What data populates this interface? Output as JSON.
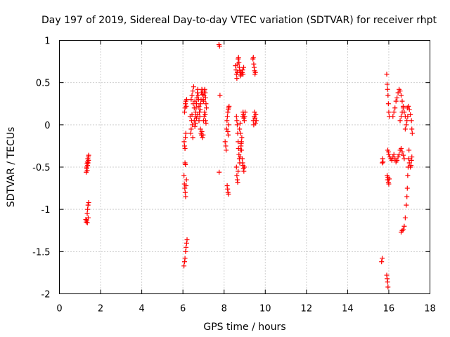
{
  "chart_data": {
    "type": "scatter",
    "title": "Day 197 of 2019, Sidereal Day-to-day VTEC variation (SDTVAR) for receiver rhpt",
    "xlabel": "GPS time / hours",
    "ylabel": "SDTVAR / TECUs",
    "xlim": [
      0,
      18
    ],
    "ylim": [
      -2,
      1
    ],
    "xticks": [
      0,
      2,
      4,
      6,
      8,
      10,
      12,
      14,
      16,
      18
    ],
    "yticks": [
      -2,
      -1.5,
      -1,
      -0.5,
      0,
      0.5,
      1
    ],
    "xtick_labels": [
      "0",
      "2",
      "4",
      "6",
      "8",
      "10",
      "12",
      "14",
      "16",
      "18"
    ],
    "ytick_labels": [
      "-2",
      "-1.5",
      "-1",
      "-0.5",
      "0",
      "0.5",
      "1"
    ],
    "grid": true,
    "marker": "+",
    "color": "#ff0000",
    "series": [
      {
        "name": "SDTVAR",
        "points": [
          [
            1.3,
            -0.56
          ],
          [
            1.32,
            -0.5
          ],
          [
            1.34,
            -0.46
          ],
          [
            1.36,
            -0.44
          ],
          [
            1.38,
            -0.4
          ],
          [
            1.4,
            -0.38
          ],
          [
            1.42,
            -0.36
          ],
          [
            1.33,
            -0.52
          ],
          [
            1.37,
            -0.48
          ],
          [
            1.41,
            -0.42
          ],
          [
            1.35,
            -0.54
          ],
          [
            1.39,
            -0.45
          ],
          [
            1.28,
            -1.12
          ],
          [
            1.3,
            -1.15
          ],
          [
            1.33,
            -1.13
          ],
          [
            1.35,
            -1.05
          ],
          [
            1.37,
            -1.0
          ],
          [
            1.39,
            -0.95
          ],
          [
            1.42,
            -0.92
          ],
          [
            1.4,
            -1.1
          ],
          [
            1.36,
            -1.16
          ],
          [
            6.05,
            -1.67
          ],
          [
            6.08,
            -1.62
          ],
          [
            6.1,
            -1.58
          ],
          [
            6.13,
            -1.5
          ],
          [
            6.15,
            -1.45
          ],
          [
            6.18,
            -1.4
          ],
          [
            6.2,
            -1.36
          ],
          [
            6.05,
            -0.6
          ],
          [
            6.07,
            -0.7
          ],
          [
            6.09,
            -0.75
          ],
          [
            6.11,
            -0.8
          ],
          [
            6.13,
            -0.85
          ],
          [
            6.15,
            -0.72
          ],
          [
            6.17,
            -0.65
          ],
          [
            6.1,
            -0.45
          ],
          [
            6.12,
            -0.47
          ],
          [
            6.06,
            -0.2
          ],
          [
            6.08,
            -0.25
          ],
          [
            6.1,
            -0.28
          ],
          [
            6.12,
            -0.15
          ],
          [
            6.14,
            -0.1
          ],
          [
            6.08,
            0.15
          ],
          [
            6.1,
            0.2
          ],
          [
            6.12,
            0.25
          ],
          [
            6.14,
            0.28
          ],
          [
            6.16,
            0.22
          ],
          [
            6.18,
            0.3
          ],
          [
            6.35,
            0.1
          ],
          [
            6.38,
            -0.1
          ],
          [
            6.4,
            -0.05
          ],
          [
            6.42,
            0.05
          ],
          [
            6.44,
            0.12
          ],
          [
            6.46,
            0.0
          ],
          [
            6.48,
            -0.15
          ],
          [
            6.4,
            0.3
          ],
          [
            6.44,
            0.35
          ],
          [
            6.48,
            0.4
          ],
          [
            6.52,
            0.45
          ],
          [
            6.5,
            0.25
          ],
          [
            6.55,
            0.2
          ],
          [
            6.58,
            0.28
          ],
          [
            6.6,
            0.1
          ],
          [
            6.62,
            0.15
          ],
          [
            6.64,
            0.2
          ],
          [
            6.66,
            0.25
          ],
          [
            6.68,
            0.32
          ],
          [
            6.7,
            0.38
          ],
          [
            6.72,
            0.42
          ],
          [
            6.74,
            0.35
          ],
          [
            6.76,
            0.3
          ],
          [
            6.78,
            0.22
          ],
          [
            6.8,
            0.15
          ],
          [
            6.82,
            0.1
          ],
          [
            6.84,
            0.18
          ],
          [
            6.86,
            0.25
          ],
          [
            6.88,
            0.3
          ],
          [
            6.9,
            0.38
          ],
          [
            6.92,
            0.42
          ],
          [
            6.94,
            0.4
          ],
          [
            6.96,
            0.36
          ],
          [
            6.98,
            0.3
          ],
          [
            7.0,
            0.28
          ],
          [
            7.02,
            0.35
          ],
          [
            7.04,
            0.4
          ],
          [
            7.06,
            0.42
          ],
          [
            7.08,
            0.38
          ],
          [
            7.1,
            0.32
          ],
          [
            7.12,
            0.25
          ],
          [
            7.14,
            0.2
          ],
          [
            6.85,
            -0.05
          ],
          [
            6.88,
            -0.1
          ],
          [
            6.9,
            -0.12
          ],
          [
            6.92,
            -0.08
          ],
          [
            6.95,
            -0.15
          ],
          [
            6.98,
            -0.12
          ],
          [
            7.0,
            0.05
          ],
          [
            7.03,
            0.1
          ],
          [
            7.05,
            0.15
          ],
          [
            7.08,
            0.12
          ],
          [
            7.1,
            0.05
          ],
          [
            7.12,
            0.02
          ],
          [
            6.55,
            0.05
          ],
          [
            6.58,
            -0.02
          ],
          [
            6.62,
            0.02
          ],
          [
            6.66,
            0.08
          ],
          [
            6.72,
            0.12
          ],
          [
            6.78,
            0.05
          ],
          [
            7.75,
            0.95
          ],
          [
            7.78,
            0.93
          ],
          [
            7.8,
            0.35
          ],
          [
            7.76,
            -0.56
          ],
          [
            8.05,
            -0.2
          ],
          [
            8.08,
            -0.25
          ],
          [
            8.1,
            -0.3
          ],
          [
            8.12,
            -0.05
          ],
          [
            8.14,
            0.05
          ],
          [
            8.16,
            0.1
          ],
          [
            8.18,
            0.15
          ],
          [
            8.2,
            0.18
          ],
          [
            8.22,
            0.2
          ],
          [
            8.24,
            0.22
          ],
          [
            8.15,
            -0.72
          ],
          [
            8.17,
            -0.76
          ],
          [
            8.19,
            -0.8
          ],
          [
            8.21,
            -0.82
          ],
          [
            8.18,
            -0.08
          ],
          [
            8.2,
            -0.12
          ],
          [
            8.22,
            0.0
          ],
          [
            8.55,
            0.7
          ],
          [
            8.58,
            0.65
          ],
          [
            8.6,
            0.6
          ],
          [
            8.62,
            0.55
          ],
          [
            8.64,
            0.62
          ],
          [
            8.66,
            0.72
          ],
          [
            8.68,
            0.78
          ],
          [
            8.7,
            0.8
          ],
          [
            8.72,
            0.74
          ],
          [
            8.74,
            0.68
          ],
          [
            8.76,
            0.64
          ],
          [
            8.78,
            0.6
          ],
          [
            8.8,
            0.58
          ],
          [
            8.82,
            0.62
          ],
          [
            8.6,
            0.1
          ],
          [
            8.62,
            0.05
          ],
          [
            8.64,
            0.0
          ],
          [
            8.66,
            -0.1
          ],
          [
            8.68,
            -0.2
          ],
          [
            8.7,
            -0.28
          ],
          [
            8.72,
            -0.35
          ],
          [
            8.74,
            -0.4
          ],
          [
            8.76,
            -0.45
          ],
          [
            8.78,
            -0.38
          ],
          [
            8.8,
            -0.3
          ],
          [
            8.82,
            -0.25
          ],
          [
            8.84,
            -0.2
          ],
          [
            8.86,
            -0.15
          ],
          [
            8.6,
            -0.5
          ],
          [
            8.62,
            -0.6
          ],
          [
            8.64,
            -0.65
          ],
          [
            8.66,
            -0.68
          ],
          [
            8.68,
            -0.55
          ],
          [
            8.9,
            0.1
          ],
          [
            8.92,
            0.15
          ],
          [
            8.94,
            0.12
          ],
          [
            8.96,
            0.08
          ],
          [
            8.98,
            0.05
          ],
          [
            9.0,
            0.1
          ],
          [
            9.02,
            0.15
          ],
          [
            8.88,
            -0.4
          ],
          [
            8.9,
            -0.45
          ],
          [
            8.92,
            -0.48
          ],
          [
            8.94,
            -0.52
          ],
          [
            8.96,
            -0.55
          ],
          [
            8.98,
            -0.5
          ],
          [
            8.86,
            0.6
          ],
          [
            8.88,
            0.62
          ],
          [
            8.9,
            0.65
          ],
          [
            8.92,
            0.6
          ],
          [
            8.95,
            0.68
          ],
          [
            8.75,
            -0.05
          ],
          [
            8.78,
            0.02
          ],
          [
            8.8,
            -0.1
          ],
          [
            8.83,
            -0.22
          ],
          [
            8.85,
            -0.3
          ],
          [
            9.4,
            0.78
          ],
          [
            9.42,
            0.8
          ],
          [
            9.44,
            0.72
          ],
          [
            9.46,
            0.68
          ],
          [
            9.48,
            0.64
          ],
          [
            9.5,
            0.6
          ],
          [
            9.52,
            0.62
          ],
          [
            9.42,
            0.05
          ],
          [
            9.44,
            0.0
          ],
          [
            9.46,
            0.1
          ],
          [
            9.48,
            0.15
          ],
          [
            9.5,
            0.08
          ],
          [
            9.52,
            0.02
          ],
          [
            9.54,
            0.12
          ],
          [
            9.56,
            0.05
          ],
          [
            15.68,
            -0.45
          ],
          [
            15.7,
            -0.4
          ],
          [
            15.72,
            -0.44
          ],
          [
            15.65,
            -1.62
          ],
          [
            15.68,
            -1.58
          ],
          [
            15.9,
            0.6
          ],
          [
            15.92,
            0.48
          ],
          [
            15.94,
            0.42
          ],
          [
            15.96,
            0.35
          ],
          [
            15.98,
            0.25
          ],
          [
            16.0,
            0.15
          ],
          [
            16.02,
            0.1
          ],
          [
            15.92,
            -0.6
          ],
          [
            15.94,
            -0.65
          ],
          [
            15.96,
            -0.62
          ],
          [
            15.98,
            -0.68
          ],
          [
            16.0,
            -0.7
          ],
          [
            16.02,
            -0.64
          ],
          [
            15.9,
            -1.78
          ],
          [
            15.92,
            -1.82
          ],
          [
            15.94,
            -1.86
          ],
          [
            15.96,
            -1.92
          ],
          [
            15.95,
            -0.3
          ],
          [
            15.98,
            -0.32
          ],
          [
            16.0,
            -0.35
          ],
          [
            16.05,
            -0.38
          ],
          [
            16.1,
            -0.4
          ],
          [
            16.15,
            -0.42
          ],
          [
            16.2,
            -0.38
          ],
          [
            16.25,
            -0.35
          ],
          [
            16.3,
            -0.4
          ],
          [
            16.35,
            -0.44
          ],
          [
            16.4,
            -0.42
          ],
          [
            16.45,
            -0.38
          ],
          [
            16.5,
            -0.35
          ],
          [
            16.55,
            -0.3
          ],
          [
            16.6,
            -0.28
          ],
          [
            16.65,
            -0.32
          ],
          [
            16.7,
            -0.36
          ],
          [
            16.75,
            -0.4
          ],
          [
            16.2,
            0.1
          ],
          [
            16.25,
            0.15
          ],
          [
            16.3,
            0.2
          ],
          [
            16.35,
            0.28
          ],
          [
            16.4,
            0.32
          ],
          [
            16.45,
            0.38
          ],
          [
            16.5,
            0.42
          ],
          [
            16.55,
            0.4
          ],
          [
            16.6,
            0.35
          ],
          [
            16.65,
            0.28
          ],
          [
            16.7,
            0.22
          ],
          [
            16.75,
            0.15
          ],
          [
            16.8,
            0.1
          ],
          [
            16.55,
            0.05
          ],
          [
            16.6,
            0.1
          ],
          [
            16.65,
            0.15
          ],
          [
            16.7,
            0.2
          ],
          [
            16.6,
            -1.27
          ],
          [
            16.65,
            -1.25
          ],
          [
            16.7,
            -1.24
          ],
          [
            16.75,
            -1.2
          ],
          [
            16.8,
            -1.1
          ],
          [
            16.85,
            -0.95
          ],
          [
            16.88,
            -0.85
          ],
          [
            16.9,
            -0.75
          ],
          [
            16.92,
            -0.6
          ],
          [
            16.94,
            -0.5
          ],
          [
            16.96,
            -0.4
          ],
          [
            16.98,
            -0.3
          ],
          [
            16.9,
            0.2
          ],
          [
            16.95,
            0.22
          ],
          [
            17.0,
            0.18
          ],
          [
            17.05,
            0.12
          ],
          [
            17.1,
            0.05
          ],
          [
            17.12,
            -0.05
          ],
          [
            17.14,
            -0.1
          ],
          [
            17.0,
            -0.45
          ],
          [
            17.05,
            -0.5
          ],
          [
            17.08,
            -0.48
          ],
          [
            17.1,
            -0.42
          ],
          [
            17.12,
            -0.38
          ],
          [
            16.8,
            -0.05
          ],
          [
            16.85,
            0.0
          ],
          [
            16.88,
            0.05
          ],
          [
            16.92,
            0.1
          ]
        ]
      }
    ]
  }
}
